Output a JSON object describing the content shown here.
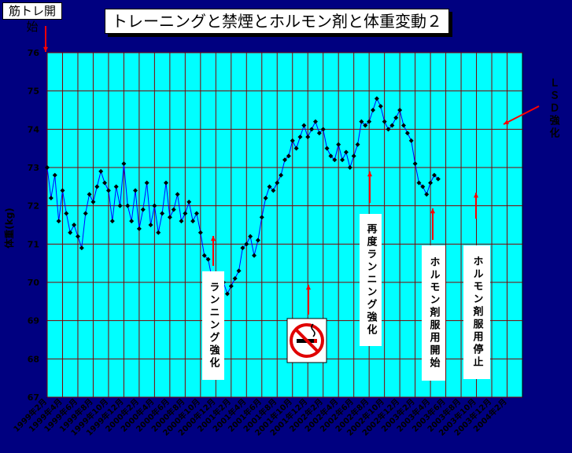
{
  "start_label": "筋トレ開始",
  "annotations": {
    "running1": "ランニング強化",
    "running2": "再度ランニング強化",
    "hormone_start": "ホルモン剤服用開始",
    "hormone_stop": "ホルモン剤服用停止",
    "lsd": "ＬＳＤ強化"
  },
  "colors": {
    "background": "#000080",
    "plot": "#00ffff",
    "grid": "#800000",
    "line": "#0000ff",
    "marker": "#000000",
    "arrow": "#ff0000"
  },
  "icons": {
    "no_smoking": "no-smoking-icon"
  },
  "chart_data": {
    "type": "line",
    "title": "トレーニングと禁煙とホルモン剤と体重変動２",
    "ylabel": "体重(kg)",
    "xlabel": "",
    "ylim": [
      67,
      76
    ],
    "yticks": [
      67,
      68,
      69,
      70,
      71,
      72,
      73,
      74,
      75,
      76
    ],
    "xlim": [
      0,
      62
    ],
    "xtick_labels": [
      "1999年2月",
      "1999年4月",
      "1999年6月",
      "1999年8月",
      "1999年10月",
      "1999年12月",
      "2000年2月",
      "2000年4月",
      "2000年6月",
      "2000年8月",
      "2000年10月",
      "2000年12月",
      "2001年2月",
      "2001年4月",
      "2001年6月",
      "2001年8月",
      "2001年10月",
      "2001年12月",
      "2002年2月",
      "2002年4月",
      "2002年6月",
      "2002年8月",
      "2002年10月",
      "2002年12月",
      "2003年2月",
      "2003年4月",
      "2003年6月",
      "2003年8月",
      "2003年10月",
      "2003年12月",
      "2004年2月"
    ],
    "xtick_positions": [
      0,
      2,
      4,
      6,
      8,
      10,
      12,
      14,
      16,
      18,
      20,
      22,
      24,
      26,
      28,
      30,
      32,
      34,
      36,
      38,
      40,
      42,
      44,
      46,
      48,
      50,
      52,
      54,
      56,
      58,
      60
    ],
    "series": [
      {
        "points": [
          [
            0,
            73.0
          ],
          [
            0.5,
            72.2
          ],
          [
            1,
            72.8
          ],
          [
            1.5,
            71.6
          ],
          [
            2,
            72.4
          ],
          [
            2.5,
            71.8
          ],
          [
            3,
            71.3
          ],
          [
            3.5,
            71.5
          ],
          [
            4,
            71.2
          ],
          [
            4.5,
            70.9
          ],
          [
            5,
            71.8
          ],
          [
            5.5,
            72.3
          ],
          [
            6,
            72.1
          ],
          [
            6.5,
            72.5
          ],
          [
            7,
            72.9
          ],
          [
            7.5,
            72.6
          ],
          [
            8,
            72.4
          ],
          [
            8.5,
            71.6
          ],
          [
            9,
            72.5
          ],
          [
            9.5,
            72.0
          ],
          [
            10,
            73.1
          ],
          [
            10.5,
            72.0
          ],
          [
            11,
            71.6
          ],
          [
            11.5,
            72.4
          ],
          [
            12,
            71.4
          ],
          [
            12.5,
            71.9
          ],
          [
            13,
            72.6
          ],
          [
            13.5,
            71.5
          ],
          [
            14,
            72.0
          ],
          [
            14.5,
            71.3
          ],
          [
            15,
            71.8
          ],
          [
            15.5,
            72.6
          ],
          [
            16,
            71.7
          ],
          [
            16.5,
            71.9
          ],
          [
            17,
            72.3
          ],
          [
            17.5,
            71.6
          ],
          [
            18,
            71.8
          ],
          [
            18.5,
            72.1
          ],
          [
            19,
            71.6
          ],
          [
            19.5,
            71.8
          ],
          [
            20,
            71.3
          ],
          [
            20.5,
            70.7
          ],
          [
            21,
            70.6
          ],
          [
            21.5,
            70.1
          ],
          [
            22,
            70.0
          ],
          [
            22.5,
            69.8
          ],
          [
            23,
            70.0
          ],
          [
            23.5,
            69.7
          ],
          [
            24,
            69.9
          ],
          [
            24.5,
            70.1
          ],
          [
            25,
            70.3
          ],
          [
            25.5,
            70.9
          ],
          [
            26,
            71.0
          ],
          [
            26.5,
            71.2
          ],
          [
            27,
            70.7
          ],
          [
            27.5,
            71.1
          ],
          [
            28,
            71.7
          ],
          [
            28.5,
            72.2
          ],
          [
            29,
            72.5
          ],
          [
            29.5,
            72.4
          ],
          [
            30,
            72.6
          ],
          [
            30.5,
            72.8
          ],
          [
            31,
            73.2
          ],
          [
            31.5,
            73.3
          ],
          [
            32,
            73.7
          ],
          [
            32.5,
            73.5
          ],
          [
            33,
            73.8
          ],
          [
            33.5,
            74.1
          ],
          [
            34,
            73.8
          ],
          [
            34.5,
            74.0
          ],
          [
            35,
            74.2
          ],
          [
            35.5,
            73.9
          ],
          [
            36,
            74.0
          ],
          [
            36.5,
            73.5
          ],
          [
            37,
            73.3
          ],
          [
            37.5,
            73.2
          ],
          [
            38,
            73.6
          ],
          [
            38.5,
            73.2
          ],
          [
            39,
            73.4
          ],
          [
            39.5,
            73.0
          ],
          [
            40,
            73.3
          ],
          [
            40.5,
            73.6
          ],
          [
            41,
            74.2
          ],
          [
            41.5,
            74.1
          ],
          [
            42,
            74.2
          ],
          [
            42.5,
            74.5
          ],
          [
            43,
            74.8
          ],
          [
            43.5,
            74.6
          ],
          [
            44,
            74.2
          ],
          [
            44.5,
            74.0
          ],
          [
            45,
            74.1
          ],
          [
            45.5,
            74.3
          ],
          [
            46,
            74.5
          ],
          [
            46.5,
            74.1
          ],
          [
            47,
            73.9
          ],
          [
            47.5,
            73.7
          ],
          [
            48,
            73.1
          ],
          [
            48.5,
            72.6
          ],
          [
            49,
            72.5
          ],
          [
            49.5,
            72.3
          ],
          [
            50,
            72.6
          ],
          [
            50.5,
            72.8
          ],
          [
            51,
            72.7
          ]
        ]
      }
    ]
  }
}
